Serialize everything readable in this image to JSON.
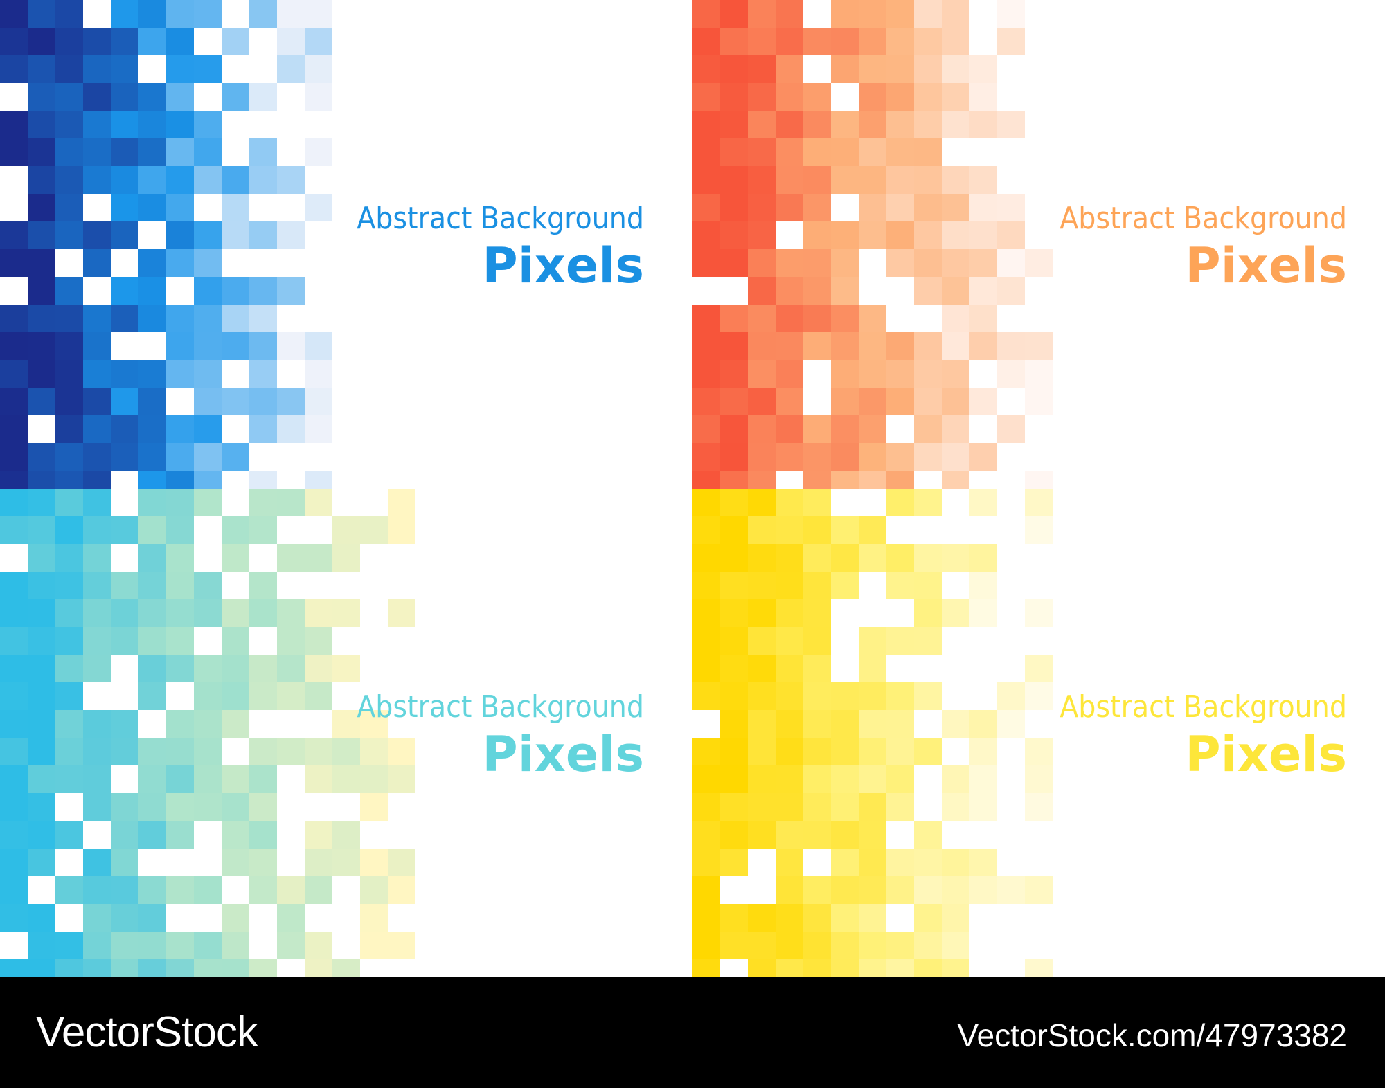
{
  "panels": [
    {
      "title": "Abstract Background",
      "subtitle": "Pixels"
    },
    {
      "title": "Abstract Background",
      "subtitle": "Pixels"
    },
    {
      "title": "Abstract Background",
      "subtitle": "Pixels"
    },
    {
      "title": "Abstract Background",
      "subtitle": "Pixels"
    }
  ],
  "footer": {
    "brand": "VectorStock",
    "url": "VectorStock.com/47973382"
  }
}
